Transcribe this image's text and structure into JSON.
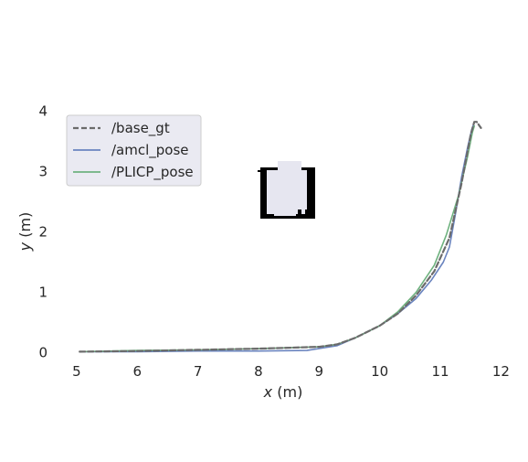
{
  "chart_data": {
    "type": "line",
    "title": "",
    "xlabel_var": "x",
    "xlabel_unit": "(m)",
    "ylabel_var": "y",
    "ylabel_unit": "(m)",
    "xlim": [
      4.7,
      12.1
    ],
    "ylim": [
      -0.05,
      4.05
    ],
    "xticks": [
      5,
      6,
      7,
      8,
      9,
      10,
      11,
      12
    ],
    "yticks": [
      0,
      1,
      2,
      3,
      4
    ],
    "grid": false,
    "legend_position": "upper-left",
    "series": [
      {
        "name": "/base_gt",
        "color": "#6b6b6b",
        "dash": true,
        "x": [
          5.05,
          6.0,
          7.0,
          8.0,
          9.0,
          9.3,
          9.6,
          10.0,
          10.3,
          10.6,
          10.9,
          11.15,
          11.35,
          11.5,
          11.56,
          11.6,
          11.67
        ],
        "y": [
          0.02,
          0.03,
          0.05,
          0.07,
          0.1,
          0.14,
          0.25,
          0.45,
          0.65,
          0.95,
          1.35,
          1.9,
          2.8,
          3.6,
          3.82,
          3.82,
          3.72
        ]
      },
      {
        "name": "/amcl_pose",
        "color": "#6a84bf",
        "dash": false,
        "x": [
          5.05,
          6.0,
          7.0,
          8.0,
          8.8,
          9.3,
          9.6,
          10.0,
          10.3,
          10.6,
          10.85,
          11.05,
          11.15,
          11.25,
          11.35,
          11.45,
          11.52,
          11.55
        ],
        "y": [
          0.02,
          0.02,
          0.03,
          0.03,
          0.04,
          0.12,
          0.25,
          0.45,
          0.65,
          0.9,
          1.2,
          1.5,
          1.75,
          2.3,
          2.9,
          3.4,
          3.7,
          3.78
        ]
      },
      {
        "name": "/PLICP_pose",
        "color": "#6fb27f",
        "dash": false,
        "x": [
          5.05,
          6.0,
          7.0,
          8.0,
          9.0,
          9.3,
          9.6,
          10.0,
          10.3,
          10.6,
          10.9,
          11.1,
          11.3,
          11.45,
          11.53,
          11.56
        ],
        "y": [
          0.02,
          0.04,
          0.05,
          0.07,
          0.1,
          0.14,
          0.25,
          0.45,
          0.68,
          1.0,
          1.45,
          1.95,
          2.6,
          3.25,
          3.65,
          3.75
        ]
      }
    ]
  }
}
